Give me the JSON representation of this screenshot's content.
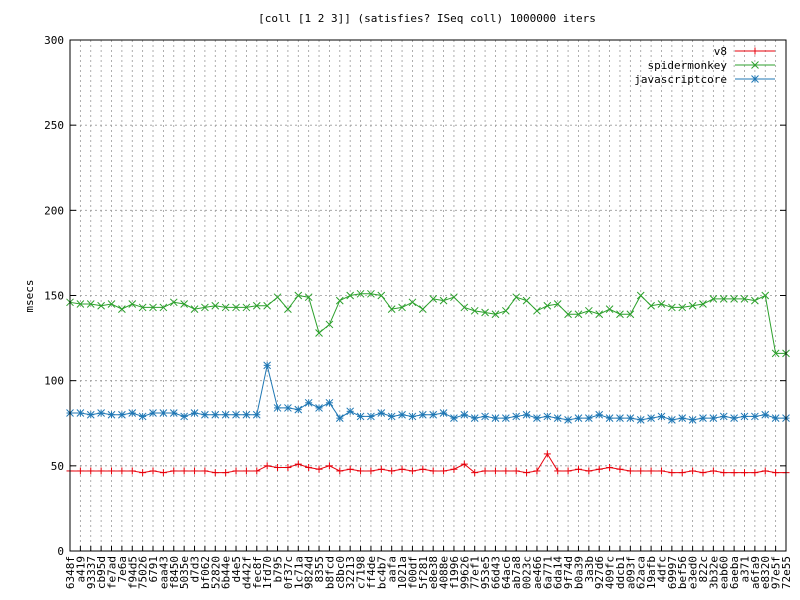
{
  "chart_data": {
    "type": "line",
    "title": "[coll [1 2 3]] (satisfies? ISeq coll) 1000000 iters",
    "xlabel": "",
    "ylabel": "msecs",
    "ylim": [
      0,
      300
    ],
    "yticks": [
      0,
      50,
      100,
      150,
      200,
      250,
      300
    ],
    "grid": true,
    "legend_position": "top-right",
    "categories": [
      "6348f",
      "a419",
      "93337",
      "cb95d",
      "fe7ad",
      "7e6a",
      "f94d5",
      "75026",
      "6791",
      "eaa43",
      "f8450",
      "5035e",
      "d7d3",
      "bf062",
      "52820",
      "6b44e",
      "d4e5",
      "d442f",
      "fec8f",
      "1fd70",
      "b795",
      "0f37c",
      "1c71a",
      "9824d",
      "8355",
      "b8fcd",
      "c8bc0",
      "32213",
      "c7198",
      "ff4de",
      "bc4b7",
      "aafa",
      "1021a",
      "f00df",
      "5f281",
      "e8e38",
      "4088e",
      "f1996",
      "99626",
      "77ef1",
      "953e5",
      "66d43",
      "64ac6",
      "ab7a8",
      "0023c",
      "ae466",
      "6a771",
      "6da14",
      "9f74d",
      "b0a39",
      "3a3b",
      "927d6",
      "409fc",
      "ddcb1",
      "a093f",
      "62aca",
      "19afb",
      "4dfc",
      "69997",
      "bef56",
      "e3ed0",
      "822c",
      "3b32e",
      "eab60",
      "6aeba",
      "a371",
      "a6fa9",
      "e8320",
      "97e5f",
      "72e55"
    ],
    "series": [
      {
        "name": "v8",
        "color": "#e8000b",
        "marker": "plus",
        "values": [
          47,
          47,
          47,
          47,
          47,
          47,
          47,
          46,
          47,
          46,
          47,
          47,
          47,
          47,
          46,
          46,
          47,
          47,
          47,
          50,
          49,
          49,
          51,
          49,
          48,
          50,
          47,
          48,
          47,
          47,
          48,
          47,
          48,
          47,
          48,
          47,
          47,
          48,
          51,
          46,
          47,
          47,
          47,
          47,
          46,
          47,
          57,
          47,
          47,
          48,
          47,
          48,
          49,
          48,
          47,
          47,
          47,
          47,
          46,
          46,
          47,
          46,
          47,
          46,
          46,
          46,
          46,
          47,
          46,
          46
        ]
      },
      {
        "name": "spidermonkey",
        "color": "#2ca02c",
        "marker": "x",
        "values": [
          146,
          145,
          145,
          144,
          145,
          142,
          145,
          143,
          143,
          143,
          146,
          145,
          142,
          143,
          144,
          143,
          143,
          143,
          144,
          144,
          149,
          142,
          150,
          149,
          128,
          133,
          147,
          150,
          151,
          151,
          150,
          142,
          143,
          146,
          142,
          148,
          147,
          149,
          143,
          141,
          140,
          139,
          141,
          149,
          147,
          141,
          144,
          145,
          139,
          139,
          141,
          139,
          142,
          139,
          139,
          150,
          144,
          145,
          143,
          143,
          144,
          145,
          148,
          148,
          148,
          148,
          147,
          150,
          116,
          116
        ]
      },
      {
        "name": "javascriptcore",
        "color": "#1f77b4",
        "marker": "star",
        "values": [
          81,
          81,
          80,
          81,
          80,
          80,
          81,
          79,
          81,
          81,
          81,
          79,
          81,
          80,
          80,
          80,
          80,
          80,
          80,
          109,
          84,
          84,
          83,
          87,
          84,
          87,
          78,
          82,
          79,
          79,
          81,
          79,
          80,
          79,
          80,
          80,
          81,
          78,
          80,
          78,
          79,
          78,
          78,
          79,
          80,
          78,
          79,
          78,
          77,
          78,
          78,
          80,
          78,
          78,
          78,
          77,
          78,
          79,
          77,
          78,
          77,
          78,
          78,
          79,
          78,
          79,
          79,
          80,
          78,
          78
        ]
      }
    ]
  }
}
